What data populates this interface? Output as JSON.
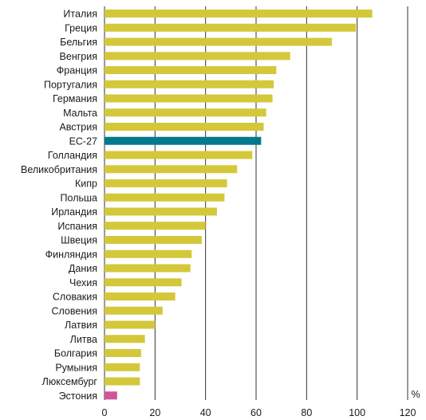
{
  "chart_data": {
    "type": "bar",
    "orientation": "horizontal",
    "title": "",
    "xlabel": "",
    "ylabel": "",
    "unit": "%",
    "xlim": [
      0,
      120
    ],
    "xticks": [
      0,
      20,
      40,
      60,
      80,
      100,
      120
    ],
    "grid": "vertical lines at ticks",
    "legend": "none",
    "colors": {
      "default": "#d4c83a",
      "eu_average": "#00798f",
      "highlight": "#d0559a"
    },
    "categories": [
      "Италия",
      "Греция",
      "Бельгия",
      "Венгрия",
      "Франция",
      "Португалия",
      "Германия",
      "Мальта",
      "Австрия",
      "ЕС-27",
      "Голландия",
      "Великобритания",
      "Кипр",
      "Польша",
      "Ирландия",
      "Испания",
      "Швеция",
      "Финляндия",
      "Дания",
      "Чехия",
      "Словакия",
      "Словения",
      "Латвия",
      "Литва",
      "Болгария",
      "Румыния",
      "Люксембург",
      "Эстония"
    ],
    "values": [
      106,
      99.5,
      90,
      73.5,
      68,
      67,
      66.5,
      64,
      63,
      62,
      58.5,
      52.5,
      48.5,
      47.5,
      44.5,
      40,
      38.5,
      34.5,
      34,
      30.5,
      28,
      23,
      20,
      16,
      14.5,
      14,
      14,
      5
    ],
    "bar_colors": [
      "default",
      "default",
      "default",
      "default",
      "default",
      "default",
      "default",
      "default",
      "default",
      "eu_average",
      "default",
      "default",
      "default",
      "default",
      "default",
      "default",
      "default",
      "default",
      "default",
      "default",
      "default",
      "default",
      "default",
      "default",
      "default",
      "default",
      "default",
      "highlight"
    ]
  }
}
